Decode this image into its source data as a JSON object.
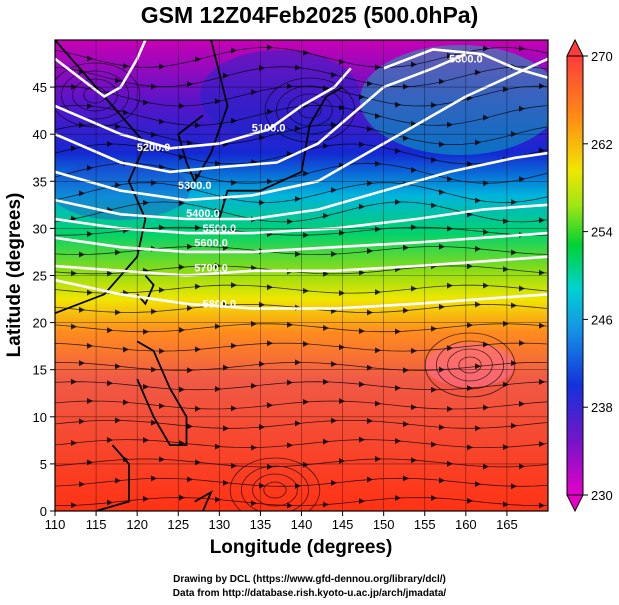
{
  "title": "GSM 12Z04Feb2025 (500.0hPa)",
  "chart_data": {
    "type": "heatmap",
    "title": "GSM 12Z04Feb2025 (500.0hPa)",
    "xlabel": "Longitude (degrees)",
    "ylabel": "Latitude  (degrees)",
    "xlim": [
      110,
      170
    ],
    "ylim": [
      0,
      50
    ],
    "x_ticks": [
      "110",
      "115",
      "120",
      "125",
      "130",
      "135",
      "140",
      "145",
      "150",
      "155",
      "160",
      "165"
    ],
    "y_ticks": [
      "0",
      "5",
      "10",
      "15",
      "20",
      "25",
      "30",
      "35",
      "40",
      "45"
    ],
    "grid": true,
    "colorbar": {
      "range": [
        230,
        270
      ],
      "ticks": [
        "230",
        "238",
        "246",
        "254",
        "262",
        "270"
      ]
    },
    "contour_labels": [
      "5100.0",
      "5200.0",
      "5300.0",
      "5300.0",
      "5400.0",
      "5500.0",
      "5600.0",
      "5700.0",
      "5800.0"
    ]
  },
  "credits": {
    "drawing": "Drawing by DCL (https://www.gfd-dennou.org/library/dcl/)",
    "data": "Data from http://database.rish.kyoto-u.ac.jp/arch/jmadata/"
  }
}
